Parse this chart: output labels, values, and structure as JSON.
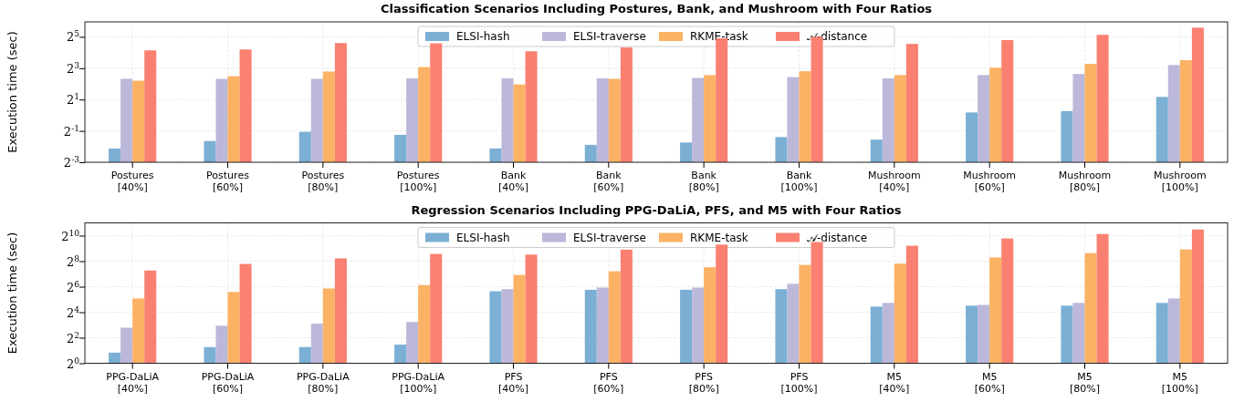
{
  "chart_data": [
    {
      "type": "bar",
      "title": "Classification Scenarios Including Postures, Bank, and Mushroom with Four Ratios",
      "ylabel": "Execution time (sec)",
      "categories": [
        "Postures\n[40%]",
        "Postures\n[60%]",
        "Postures\n[80%]",
        "Postures\n[100%]",
        "Bank\n[40%]",
        "Bank\n[60%]",
        "Bank\n[80%]",
        "Bank\n[100%]",
        "Mushroom\n[40%]",
        "Mushroom\n[60%]",
        "Mushroom\n[80%]",
        "Mushroom\n[100%]"
      ],
      "series": [
        {
          "name": "ELSI-hash",
          "color": "#7bafd4",
          "values": [
            0.23,
            0.32,
            0.48,
            0.42,
            0.23,
            0.27,
            0.3,
            0.38,
            0.34,
            1.13,
            1.2,
            2.25
          ]
        },
        {
          "name": "ELSI-traverse",
          "color": "#bcb8da",
          "values": [
            5.0,
            5.0,
            5.0,
            5.1,
            5.1,
            5.1,
            5.2,
            5.4,
            5.1,
            5.9,
            6.2,
            9.2
          ]
        },
        {
          "name": "RKME-task",
          "color": "#fbb264",
          "values": [
            4.6,
            5.6,
            6.9,
            8.4,
            3.9,
            5.0,
            5.9,
            7.0,
            5.9,
            8.2,
            9.7,
            11.4
          ]
        },
        {
          "name": "𝒜-distance",
          "color": "#fa8072",
          "values": [
            17.6,
            18.3,
            24.3,
            24,
            16.9,
            20,
            30,
            32,
            23.4,
            27.7,
            35,
            48
          ]
        }
      ],
      "log": true,
      "ylim": [
        0.125,
        62
      ],
      "yticks": [
        {
          "value": 0.125,
          "label": "2$^{-3}$"
        },
        {
          "value": 0.5,
          "label": "2$^{-1}$"
        },
        {
          "value": 2,
          "label": "2$^{1}$"
        },
        {
          "value": 8,
          "label": "2$^{3}$"
        },
        {
          "value": 32,
          "label": "2$^{5}$"
        }
      ],
      "grid": true,
      "legend": "top"
    },
    {
      "type": "bar",
      "title": "Regression Scenarios Including PPG-DaLiA, PFS, and M5 with Four Ratios",
      "ylabel": "Execution time (sec)",
      "categories": [
        "PPG-DaLiA\n[40%]",
        "PPG-DaLiA\n[60%]",
        "PPG-DaLiA\n[80%]",
        "PPG-DaLiA\n[100%]",
        "PFS\n[40%]",
        "PFS\n[60%]",
        "PFS\n[80%]",
        "PFS\n[100%]",
        "M5\n[40%]",
        "M5\n[60%]",
        "M5\n[80%]",
        "M5\n[100%]"
      ],
      "series": [
        {
          "name": "ELSI-hash",
          "color": "#7bafd4",
          "values": [
            1.78,
            2.41,
            2.41,
            2.75,
            50,
            54,
            54,
            56,
            21.7,
            22.8,
            22.8,
            26.5
          ]
        },
        {
          "name": "ELSI-traverse",
          "color": "#bcb8da",
          "values": [
            6.9,
            7.7,
            8.6,
            9.4,
            56,
            61,
            61,
            75,
            26.5,
            23.8,
            26.5,
            33.8
          ]
        },
        {
          "name": "RKME-task",
          "color": "#fbb264",
          "values": [
            33.8,
            48,
            58,
            70,
            121,
            148,
            184,
            209,
            224,
            313,
            396,
            484
          ]
        },
        {
          "name": "𝒜-distance",
          "color": "#fa8072",
          "values": [
            154,
            220,
            298,
            380,
            365,
            478,
            630,
            724,
            592,
            879,
            1120,
            1430
          ]
        }
      ],
      "log": true,
      "ylim": [
        1,
        2048
      ],
      "yticks": [
        {
          "value": 1,
          "label": "2$^{0}$"
        },
        {
          "value": 4,
          "label": "2$^{2}$"
        },
        {
          "value": 16,
          "label": "2$^{4}$"
        },
        {
          "value": 64,
          "label": "2$^{6}$"
        },
        {
          "value": 256,
          "label": "2$^{8}$"
        },
        {
          "value": 1024,
          "label": "2$^{10}$"
        }
      ],
      "grid": true,
      "legend": "top"
    }
  ]
}
